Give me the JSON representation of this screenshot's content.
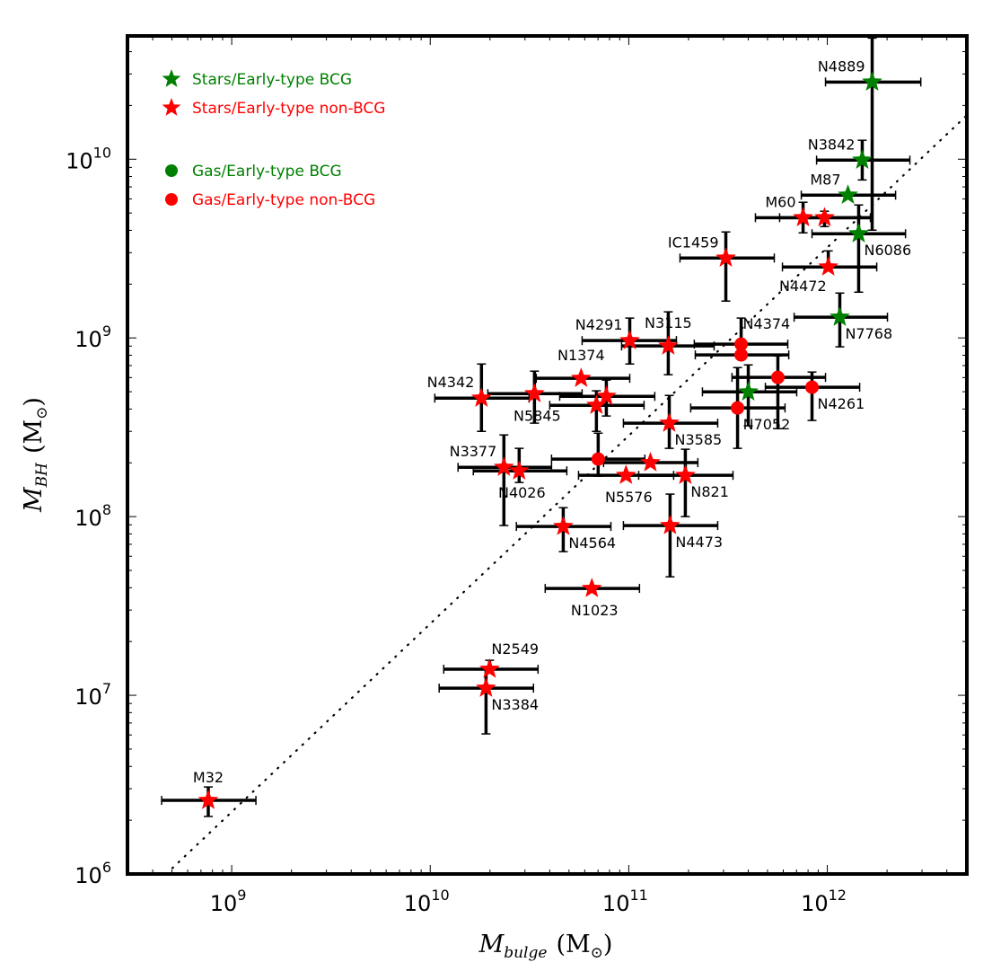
{
  "chart_data": {
    "type": "scatter",
    "title": "",
    "xlabel": "M_bulge (M_⊙)",
    "ylabel": "M_BH (M_⊙)",
    "xlabel_parts": {
      "main": "M",
      "sub": "bulge",
      "unit": "(M",
      "unit_sub": "⊙",
      "close": ")"
    },
    "ylabel_parts": {
      "main": "M",
      "sub": "BH",
      "unit": "(M",
      "unit_sub": "⊙",
      "close": ")"
    },
    "xscale": "log",
    "yscale": "log",
    "xlim_log10": [
      8.475,
      12.703
    ],
    "ylim_log10": [
      6.0,
      10.69
    ],
    "x_ticks": [
      {
        "base": "10",
        "exp": "9",
        "log10": 9
      },
      {
        "base": "10",
        "exp": "10",
        "log10": 10
      },
      {
        "base": "10",
        "exp": "11",
        "log10": 11
      },
      {
        "base": "10",
        "exp": "12",
        "log10": 12
      }
    ],
    "y_ticks": [
      {
        "base": "10",
        "exp": "6",
        "log10": 6
      },
      {
        "base": "10",
        "exp": "7",
        "log10": 7
      },
      {
        "base": "10",
        "exp": "8",
        "log10": 8
      },
      {
        "base": "10",
        "exp": "9",
        "log10": 9
      },
      {
        "base": "10",
        "exp": "10",
        "log10": 10
      }
    ],
    "grid": false,
    "legend_position": "top-left",
    "legend": [
      {
        "label": "Stars/Early-type BCG",
        "marker": "star",
        "color": "#008000"
      },
      {
        "label": "Stars/Early-type non-BCG",
        "marker": "star",
        "color": "#ff0000"
      },
      {
        "label": "Gas/Early-type BCG",
        "marker": "circle",
        "color": "#008000"
      },
      {
        "label": "Gas/Early-type non-BCG",
        "marker": "circle",
        "color": "#ff0000"
      }
    ],
    "colors": {
      "bcg": "#008000",
      "non_bcg": "#ff0000",
      "errorbar": "#000000"
    },
    "fit_line": {
      "style": "dotted",
      "points_log10": [
        [
          8.67,
          6.0
        ],
        [
          12.703,
          10.246
        ]
      ]
    },
    "points": [
      {
        "name": "N4889",
        "group": "Stars/Early-type BCG",
        "marker": "star",
        "color": "#008000",
        "logx": 12.226,
        "logy": 10.432,
        "xerr": [
          11.991,
          12.471
        ],
        "yerr": [
          9.603,
          10.678
        ],
        "label_pos": "upper-left"
      },
      {
        "name": "N3842",
        "group": "Stars/Early-type BCG",
        "marker": "star",
        "color": "#008000",
        "logx": 12.176,
        "logy": 9.995,
        "xerr": [
          11.946,
          12.416
        ],
        "yerr": [
          9.884,
          10.106
        ],
        "label_pos": "upper-left"
      },
      {
        "name": "M87",
        "group": "Stars/Early-type BCG",
        "marker": "star",
        "color": "#008000",
        "logx": 12.104,
        "logy": 9.799,
        "xerr": [
          11.869,
          12.344
        ],
        "yerr": [
          9.799,
          9.799
        ],
        "label_pos": "upper-left"
      },
      {
        "name": "M60",
        "group": "Stars/Early-type non-BCG",
        "marker": "star",
        "color": "#ff0000",
        "logx": 11.878,
        "logy": 9.673,
        "xerr": [
          11.638,
          12.226
        ],
        "yerr": [
          9.588,
          9.759
        ],
        "label_pos": "upper-left"
      },
      {
        "name": "",
        "group": "Stars/Early-type non-BCG",
        "marker": "star",
        "color": "#ff0000",
        "logx": 11.986,
        "logy": 9.673,
        "xerr": [
          11.76,
          12.217
        ],
        "yerr": [
          9.623,
          9.709
        ],
        "label_pos": "none"
      },
      {
        "name": "N6086",
        "group": "Stars/Early-type BCG",
        "marker": "star",
        "color": "#008000",
        "logx": 12.158,
        "logy": 9.583,
        "xerr": [
          11.923,
          12.394
        ],
        "yerr": [
          9.256,
          9.744
        ],
        "label_pos": "lower-right"
      },
      {
        "name": "N4472",
        "group": "Stars/Early-type non-BCG",
        "marker": "star",
        "color": "#ff0000",
        "logx": 12.005,
        "logy": 9.397,
        "xerr": [
          11.774,
          12.249
        ],
        "yerr": [
          9.397,
          9.487
        ],
        "label_pos": "lower-left"
      },
      {
        "name": "IC1459",
        "group": "Stars/Early-type non-BCG",
        "marker": "star",
        "color": "#ff0000",
        "logx": 11.489,
        "logy": 9.447,
        "xerr": [
          11.258,
          11.733
        ],
        "yerr": [
          9.206,
          9.593
        ],
        "label_pos": "upper-left"
      },
      {
        "name": "N7768",
        "group": "Stars/Early-type BCG",
        "marker": "star",
        "color": "#008000",
        "logx": 12.063,
        "logy": 9.116,
        "xerr": [
          11.833,
          12.303
        ],
        "yerr": [
          8.95,
          9.251
        ],
        "label_pos": "lower-right"
      },
      {
        "name": "N4374",
        "group": "Gas/Early-type non-BCG",
        "marker": "circle",
        "color": "#ff0000",
        "logx": 11.566,
        "logy": 8.965,
        "xerr": [
          11.33,
          11.801
        ],
        "yerr": [
          8.965,
          9.111
        ],
        "label_pos": "upper-right"
      },
      {
        "name": "",
        "group": "Gas/Early-type non-BCG",
        "marker": "circle",
        "color": "#ff0000",
        "logx": 11.566,
        "logy": 8.905,
        "xerr": [
          11.335,
          11.806
        ],
        "yerr": [
          8.905,
          8.905
        ],
        "label_pos": "none"
      },
      {
        "name": "",
        "group": "Gas/Early-type non-BCG",
        "marker": "circle",
        "color": "#ff0000",
        "logx": 11.751,
        "logy": 8.779,
        "xerr": [
          11.52,
          11.991
        ],
        "yerr": [
          8.492,
          8.899
        ],
        "label_pos": "none"
      },
      {
        "name": "N4261",
        "group": "Gas/Early-type non-BCG",
        "marker": "circle",
        "color": "#ff0000",
        "logx": 11.923,
        "logy": 8.724,
        "xerr": [
          11.688,
          12.163
        ],
        "yerr": [
          8.538,
          8.809
        ],
        "label_pos": "lower-right"
      },
      {
        "name": "",
        "group": "Stars/Early-type BCG",
        "marker": "star",
        "color": "#008000",
        "logx": 11.602,
        "logy": 8.698,
        "xerr": [
          11.371,
          11.846
        ],
        "yerr": [
          8.508,
          8.849
        ],
        "label_pos": "none"
      },
      {
        "name": "N7052",
        "group": "Gas/Early-type non-BCG",
        "marker": "circle",
        "color": "#ff0000",
        "logx": 11.548,
        "logy": 8.608,
        "xerr": [
          11.312,
          11.787
        ],
        "yerr": [
          8.382,
          8.834
        ],
        "label_pos": "lower-right"
      },
      {
        "name": "N3115",
        "group": "Stars/Early-type non-BCG",
        "marker": "star",
        "color": "#ff0000",
        "logx": 11.199,
        "logy": 8.955,
        "xerr": [
          10.964,
          11.43
        ],
        "yerr": [
          8.794,
          9.146
        ],
        "label_pos": "upper-center"
      },
      {
        "name": "N4291",
        "group": "Stars/Early-type non-BCG",
        "marker": "star",
        "color": "#ff0000",
        "logx": 11.005,
        "logy": 8.985,
        "xerr": [
          10.765,
          11.24
        ],
        "yerr": [
          8.854,
          9.111
        ],
        "label_pos": "upper-left"
      },
      {
        "name": "N1374",
        "group": "Stars/Early-type non-BCG",
        "marker": "star",
        "color": "#ff0000",
        "logx": 10.76,
        "logy": 8.774,
        "xerr": [
          10.534,
          11.005
        ],
        "yerr": [
          8.774,
          8.774
        ],
        "label_pos": "upper-center"
      },
      {
        "name": "N4342",
        "group": "Stars/Early-type non-BCG",
        "marker": "star",
        "color": "#ff0000",
        "logx": 10.258,
        "logy": 8.663,
        "xerr": [
          10.023,
          10.498
        ],
        "yerr": [
          8.477,
          8.854
        ],
        "label_pos": "upper-left"
      },
      {
        "name": "N5845",
        "group": "Stars/Early-type non-BCG",
        "marker": "star",
        "color": "#ff0000",
        "logx": 10.525,
        "logy": 8.688,
        "xerr": [
          10.29,
          10.765
        ],
        "yerr": [
          8.523,
          8.814
        ],
        "label_pos": "lower-center"
      },
      {
        "name": "",
        "group": "Stars/Early-type non-BCG",
        "marker": "star",
        "color": "#ff0000",
        "logx": 10.887,
        "logy": 8.673,
        "xerr": [
          10.652,
          11.131
        ],
        "yerr": [
          8.563,
          8.764
        ],
        "label_pos": "none"
      },
      {
        "name": "",
        "group": "Stars/Early-type non-BCG",
        "marker": "star",
        "color": "#ff0000",
        "logx": 10.837,
        "logy": 8.623,
        "xerr": [
          10.602,
          11.077
        ],
        "yerr": [
          8.477,
          8.704
        ],
        "label_pos": "none"
      },
      {
        "name": "N3585",
        "group": "Stars/Early-type non-BCG",
        "marker": "star",
        "color": "#ff0000",
        "logx": 11.204,
        "logy": 8.523,
        "xerr": [
          10.973,
          11.448
        ],
        "yerr": [
          8.382,
          8.678
        ],
        "label_pos": "lower-right"
      },
      {
        "name": "",
        "group": "Gas/Early-type non-BCG",
        "marker": "circle",
        "color": "#ff0000",
        "logx": 10.846,
        "logy": 8.322,
        "xerr": [
          10.611,
          11.081
        ],
        "yerr": [
          8.226,
          8.467
        ],
        "label_pos": "none"
      },
      {
        "name": "",
        "group": "Stars/Early-type non-BCG",
        "marker": "star",
        "color": "#ff0000",
        "logx": 11.109,
        "logy": 8.302,
        "xerr": [
          10.873,
          11.348
        ],
        "yerr": [
          8.302,
          8.302
        ],
        "label_pos": "none"
      },
      {
        "name": "N3377",
        "group": "Stars/Early-type non-BCG",
        "marker": "star",
        "color": "#ff0000",
        "logx": 10.371,
        "logy": 8.276,
        "xerr": [
          10.14,
          10.611
        ],
        "yerr": [
          7.95,
          8.457
        ],
        "label_pos": "upper-left"
      },
      {
        "name": "N4026",
        "group": "Stars/Early-type non-BCG",
        "marker": "star",
        "color": "#ff0000",
        "logx": 10.448,
        "logy": 8.256,
        "xerr": [
          10.217,
          10.688
        ],
        "yerr": [
          8.191,
          8.382
        ],
        "label_pos": "lower-center"
      },
      {
        "name": "N5576",
        "group": "Stars/Early-type non-BCG",
        "marker": "star",
        "color": "#ff0000",
        "logx": 10.986,
        "logy": 8.231,
        "xerr": [
          10.747,
          11.226
        ],
        "yerr": [
          8.231,
          8.231
        ],
        "label_pos": "lower-center"
      },
      {
        "name": "N821",
        "group": "Stars/Early-type non-BCG",
        "marker": "star",
        "color": "#ff0000",
        "logx": 11.285,
        "logy": 8.231,
        "xerr": [
          11.05,
          11.525
        ],
        "yerr": [
          8.0,
          8.377
        ],
        "label_pos": "lower-right"
      },
      {
        "name": "N4564",
        "group": "Stars/Early-type non-BCG",
        "marker": "star",
        "color": "#ff0000",
        "logx": 10.67,
        "logy": 7.945,
        "xerr": [
          10.434,
          10.91
        ],
        "yerr": [
          7.804,
          8.05
        ],
        "label_pos": "lower-right"
      },
      {
        "name": "N4473",
        "group": "Stars/Early-type non-BCG",
        "marker": "star",
        "color": "#ff0000",
        "logx": 11.208,
        "logy": 7.95,
        "xerr": [
          10.973,
          11.448
        ],
        "yerr": [
          7.663,
          8.126
        ],
        "label_pos": "lower-right"
      },
      {
        "name": "N1023",
        "group": "Stars/Early-type non-BCG",
        "marker": "star",
        "color": "#ff0000",
        "logx": 10.814,
        "logy": 7.598,
        "xerr": [
          10.579,
          11.054
        ],
        "yerr": [
          7.598,
          7.598
        ],
        "label_pos": "lower-center"
      },
      {
        "name": "N2549",
        "group": "Stars/Early-type non-BCG",
        "marker": "star",
        "color": "#ff0000",
        "logx": 10.299,
        "logy": 7.146,
        "xerr": [
          10.068,
          10.543
        ],
        "yerr": [
          7.146,
          7.196
        ],
        "label_pos": "upper-right"
      },
      {
        "name": "N3384",
        "group": "Stars/Early-type non-BCG",
        "marker": "star",
        "color": "#ff0000",
        "logx": 10.281,
        "logy": 7.04,
        "xerr": [
          10.045,
          10.52
        ],
        "yerr": [
          6.784,
          7.146
        ],
        "label_pos": "lower-right"
      },
      {
        "name": "M32",
        "group": "Stars/Early-type non-BCG",
        "marker": "star",
        "color": "#ff0000",
        "logx": 8.882,
        "logy": 6.412,
        "xerr": [
          8.647,
          9.122
        ],
        "yerr": [
          6.322,
          6.487
        ],
        "label_pos": "upper-center"
      }
    ]
  }
}
